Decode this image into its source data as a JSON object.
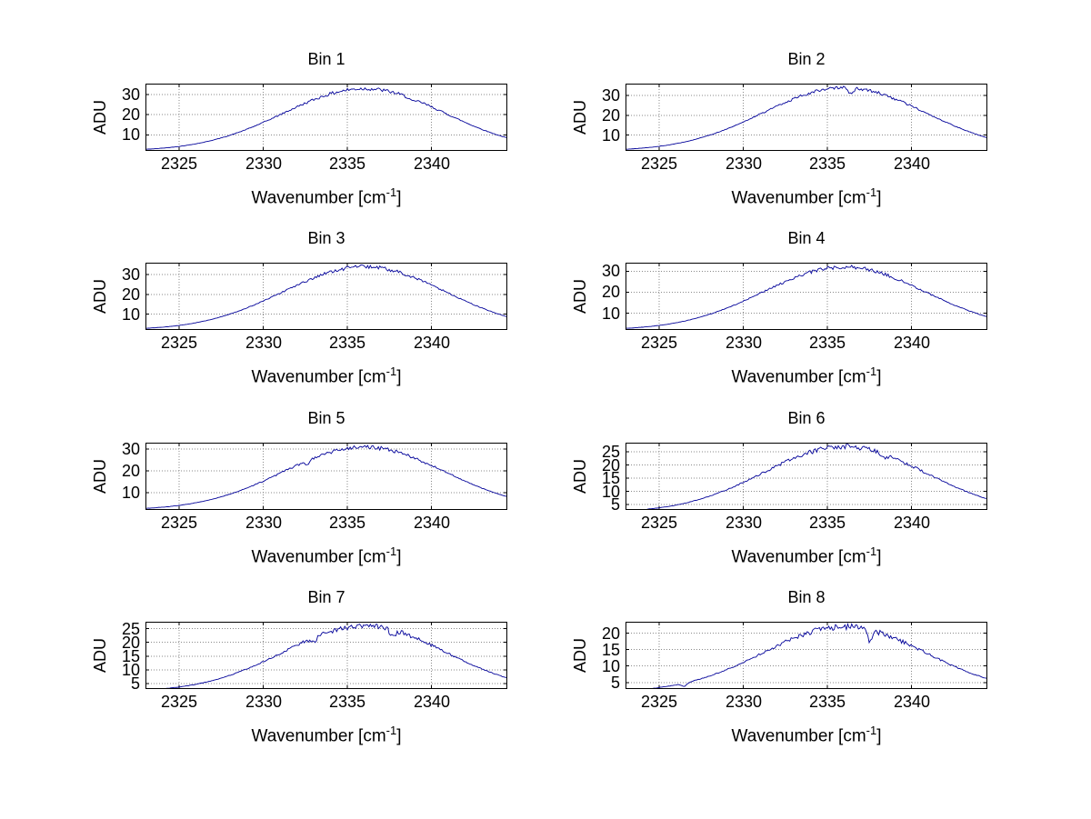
{
  "figure": {
    "background": "#ffffff",
    "line_color": "#000099",
    "grid_color": "#8a8a8a",
    "axis_color": "#000000"
  },
  "shared": {
    "ylabel": "ADU",
    "xlabel_main": "Wavenumber [cm",
    "xlabel_sup": "-1",
    "xlabel_close": "]",
    "xlim": [
      2323,
      2344.5
    ],
    "xticks": [
      2325,
      2330,
      2335,
      2340
    ],
    "x": [
      2323,
      2324,
      2325,
      2326,
      2327,
      2328,
      2329,
      2330,
      2331,
      2332,
      2333,
      2334,
      2335,
      2336,
      2337,
      2338,
      2339,
      2340,
      2341,
      2342,
      2343,
      2344
    ]
  },
  "chart_data": [
    {
      "type": "line",
      "title": "Bin 1",
      "ylabel": "ADU",
      "xlabel": "Wavenumber [cm^-1]",
      "ylim": [
        2,
        35.5
      ],
      "yticks": [
        10,
        20,
        30
      ],
      "grid": true,
      "noise": 1.0,
      "model": {
        "shape": "gaussian",
        "center": 2336,
        "sigma": 4.8,
        "base": 2,
        "peak": 33
      },
      "dips": [
        {
          "x": 2338.9,
          "depth": 1.3
        }
      ],
      "values": [
        2.8,
        3.4,
        4.2,
        5.5,
        7.3,
        9.7,
        12.7,
        16.2,
        20.0,
        23.9,
        27.5,
        30.4,
        32.3,
        33.0,
        32.3,
        30.4,
        27.5,
        23.9,
        20.0,
        16.2,
        12.7,
        9.7
      ]
    },
    {
      "type": "line",
      "title": "Bin 2",
      "ylabel": "ADU",
      "xlabel": "Wavenumber [cm^-1]",
      "ylim": [
        2,
        36
      ],
      "yticks": [
        10,
        20,
        30
      ],
      "grid": true,
      "noise": 1.0,
      "model": {
        "shape": "gaussian",
        "center": 2336,
        "sigma": 4.8,
        "base": 2,
        "peak": 34
      },
      "dips": [
        {
          "x": 2336.4,
          "depth": 3.5
        }
      ],
      "values": [
        2.8,
        3.4,
        4.3,
        5.7,
        7.5,
        10.0,
        13.1,
        16.7,
        20.6,
        24.6,
        28.3,
        31.3,
        33.3,
        34.0,
        33.3,
        31.3,
        28.3,
        24.6,
        20.6,
        16.7,
        13.1,
        10.0
      ]
    },
    {
      "type": "line",
      "title": "Bin 3",
      "ylabel": "ADU",
      "xlabel": "Wavenumber [cm^-1]",
      "ylim": [
        2,
        36
      ],
      "yticks": [
        10,
        20,
        30
      ],
      "grid": true,
      "noise": 1.0,
      "model": {
        "shape": "gaussian",
        "center": 2336,
        "sigma": 4.8,
        "base": 2,
        "peak": 34
      },
      "dips": [],
      "values": [
        2.8,
        3.4,
        4.3,
        5.7,
        7.5,
        10.0,
        13.1,
        16.7,
        20.6,
        24.6,
        28.3,
        31.3,
        33.3,
        34.0,
        33.3,
        31.3,
        28.3,
        24.6,
        20.6,
        16.7,
        13.1,
        10.0
      ]
    },
    {
      "type": "line",
      "title": "Bin 4",
      "ylabel": "ADU",
      "xlabel": "Wavenumber [cm^-1]",
      "ylim": [
        2,
        34
      ],
      "yticks": [
        10,
        20,
        30
      ],
      "grid": true,
      "noise": 1.0,
      "model": {
        "shape": "gaussian",
        "center": 2336,
        "sigma": 4.8,
        "base": 2,
        "peak": 32
      },
      "dips": [],
      "values": [
        2.8,
        3.3,
        4.2,
        5.4,
        7.2,
        9.5,
        12.4,
        15.7,
        19.4,
        23.2,
        26.7,
        29.5,
        31.4,
        32.0,
        31.4,
        29.5,
        26.7,
        23.2,
        19.4,
        15.7,
        12.4,
        9.5
      ]
    },
    {
      "type": "line",
      "title": "Bin 5",
      "ylabel": "ADU",
      "xlabel": "Wavenumber [cm^-1]",
      "ylim": [
        2,
        33
      ],
      "yticks": [
        10,
        20,
        30
      ],
      "grid": true,
      "noise": 1.0,
      "model": {
        "shape": "gaussian",
        "center": 2336,
        "sigma": 4.8,
        "base": 2,
        "peak": 31
      },
      "dips": [
        {
          "x": 2332.6,
          "depth": 1.5
        }
      ],
      "values": [
        2.7,
        3.3,
        4.1,
        5.3,
        7.0,
        9.2,
        12.0,
        15.3,
        18.9,
        22.5,
        25.9,
        28.6,
        30.4,
        31.0,
        30.4,
        28.6,
        25.9,
        22.5,
        18.9,
        15.3,
        12.0,
        9.2
      ]
    },
    {
      "type": "line",
      "title": "Bin 6",
      "ylabel": "ADU",
      "xlabel": "Wavenumber [cm^-1]",
      "ylim": [
        3,
        28.5
      ],
      "yticks": [
        5,
        10,
        15,
        20,
        25
      ],
      "grid": true,
      "noise": 1.0,
      "model": {
        "shape": "gaussian",
        "center": 2336,
        "sigma": 4.8,
        "base": 2,
        "peak": 27
      },
      "dips": [
        {
          "x": 2338.4,
          "depth": 1.2
        }
      ],
      "values": [
        2.6,
        3.1,
        3.8,
        4.9,
        6.3,
        8.2,
        10.6,
        13.4,
        16.5,
        19.7,
        22.6,
        24.9,
        26.5,
        27.0,
        26.5,
        24.9,
        22.6,
        19.7,
        16.5,
        13.4,
        10.6,
        8.2
      ]
    },
    {
      "type": "line",
      "title": "Bin 7",
      "ylabel": "ADU",
      "xlabel": "Wavenumber [cm^-1]",
      "ylim": [
        3,
        27.5
      ],
      "yticks": [
        5,
        10,
        15,
        20,
        25
      ],
      "grid": true,
      "noise": 1.0,
      "model": {
        "shape": "gaussian",
        "center": 2336,
        "sigma": 4.8,
        "base": 2,
        "peak": 26
      },
      "dips": [
        {
          "x": 2333.0,
          "depth": 1.8
        },
        {
          "x": 2337.7,
          "depth": 2.5
        }
      ],
      "values": [
        2.6,
        3.1,
        3.7,
        4.7,
        6.1,
        8.0,
        10.3,
        13.0,
        16.0,
        19.0,
        21.7,
        24.0,
        25.5,
        26.0,
        25.5,
        24.0,
        21.7,
        19.0,
        16.0,
        13.0,
        10.3,
        8.0
      ]
    },
    {
      "type": "line",
      "title": "Bin 8",
      "ylabel": "ADU",
      "xlabel": "Wavenumber [cm^-1]",
      "ylim": [
        3,
        23.5
      ],
      "yticks": [
        5,
        10,
        15,
        20
      ],
      "grid": true,
      "noise": 1.0,
      "model": {
        "shape": "gaussian",
        "center": 2336,
        "sigma": 4.8,
        "base": 2,
        "peak": 22
      },
      "dips": [
        {
          "x": 2337.5,
          "depth": 3.2
        },
        {
          "x": 2326.5,
          "depth": 1.0
        }
      ],
      "values": [
        2.5,
        2.9,
        3.4,
        4.3,
        5.4,
        7.0,
        8.9,
        11.2,
        13.6,
        16.1,
        18.5,
        20.3,
        21.6,
        22.0,
        21.6,
        20.3,
        18.5,
        16.1,
        13.6,
        11.2,
        8.9,
        7.0
      ]
    }
  ]
}
